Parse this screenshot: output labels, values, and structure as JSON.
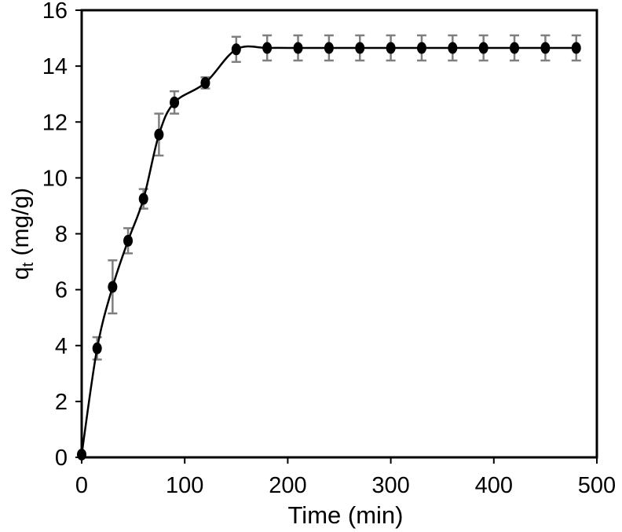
{
  "chart_data": {
    "type": "scatter",
    "title": "",
    "xlabel": "Time (min)",
    "ylabel_main": "q",
    "ylabel_sub": "t",
    "ylabel_unit": " (mg/g)",
    "xlim": [
      0,
      500
    ],
    "ylim": [
      0,
      16
    ],
    "x_ticks": [
      0,
      100,
      200,
      300,
      400,
      500
    ],
    "y_ticks": [
      0,
      2,
      4,
      6,
      8,
      10,
      12,
      14,
      16
    ],
    "grid": false,
    "legend": "none",
    "series": [
      {
        "x": [
          0,
          15,
          30,
          45,
          60,
          75,
          90,
          120,
          150,
          180,
          210,
          240,
          270,
          300,
          330,
          360,
          390,
          420,
          450,
          480
        ],
        "y": [
          0.1,
          3.9,
          6.1,
          7.75,
          9.25,
          11.55,
          12.7,
          13.4,
          14.6,
          14.65,
          14.65,
          14.65,
          14.65,
          14.65,
          14.65,
          14.65,
          14.65,
          14.65,
          14.65,
          14.65
        ],
        "error": [
          0,
          0.4,
          0.95,
          0.45,
          0.35,
          0.75,
          0.4,
          0.2,
          0.45,
          0.45,
          0.45,
          0.45,
          0.45,
          0.45,
          0.45,
          0.45,
          0.45,
          0.45,
          0.45,
          0.45
        ]
      }
    ],
    "colors": {
      "marker": "#000000",
      "line": "#000000",
      "errorbar": "#7f7f7f",
      "axis": "#000000"
    }
  }
}
